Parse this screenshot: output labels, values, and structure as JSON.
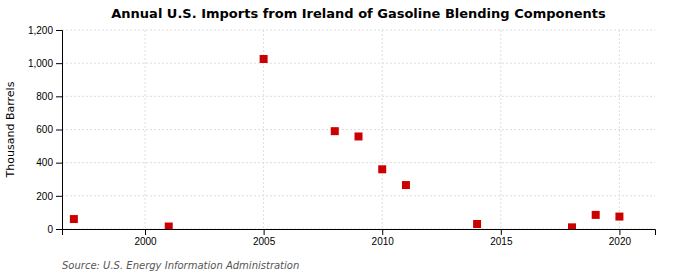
{
  "chart_data": {
    "type": "scatter",
    "title": "Annual U.S. Imports from Ireland of Gasoline Blending Components",
    "ylabel": "Thousand Barrels",
    "annotations": [
      "Source: U.S. Energy Information Administration"
    ],
    "x": [
      1997,
      2001,
      2005,
      2008,
      2009,
      2010,
      2011,
      2014,
      2018,
      2019,
      2020
    ],
    "values": [
      60,
      15,
      1025,
      590,
      558,
      360,
      265,
      30,
      10,
      85,
      75
    ],
    "color": "#cc0000",
    "marker": "square",
    "xlim": [
      1996.5,
      2021.5
    ],
    "ylim": [
      0,
      1200
    ],
    "xticks": [
      2000,
      2005,
      2010,
      2015,
      2020
    ],
    "yticks": [
      0,
      200,
      400,
      600,
      800,
      {
        "value": 1000,
        "label": "1,000"
      },
      {
        "value": 1200,
        "label": "1,200"
      }
    ],
    "grid": true
  }
}
